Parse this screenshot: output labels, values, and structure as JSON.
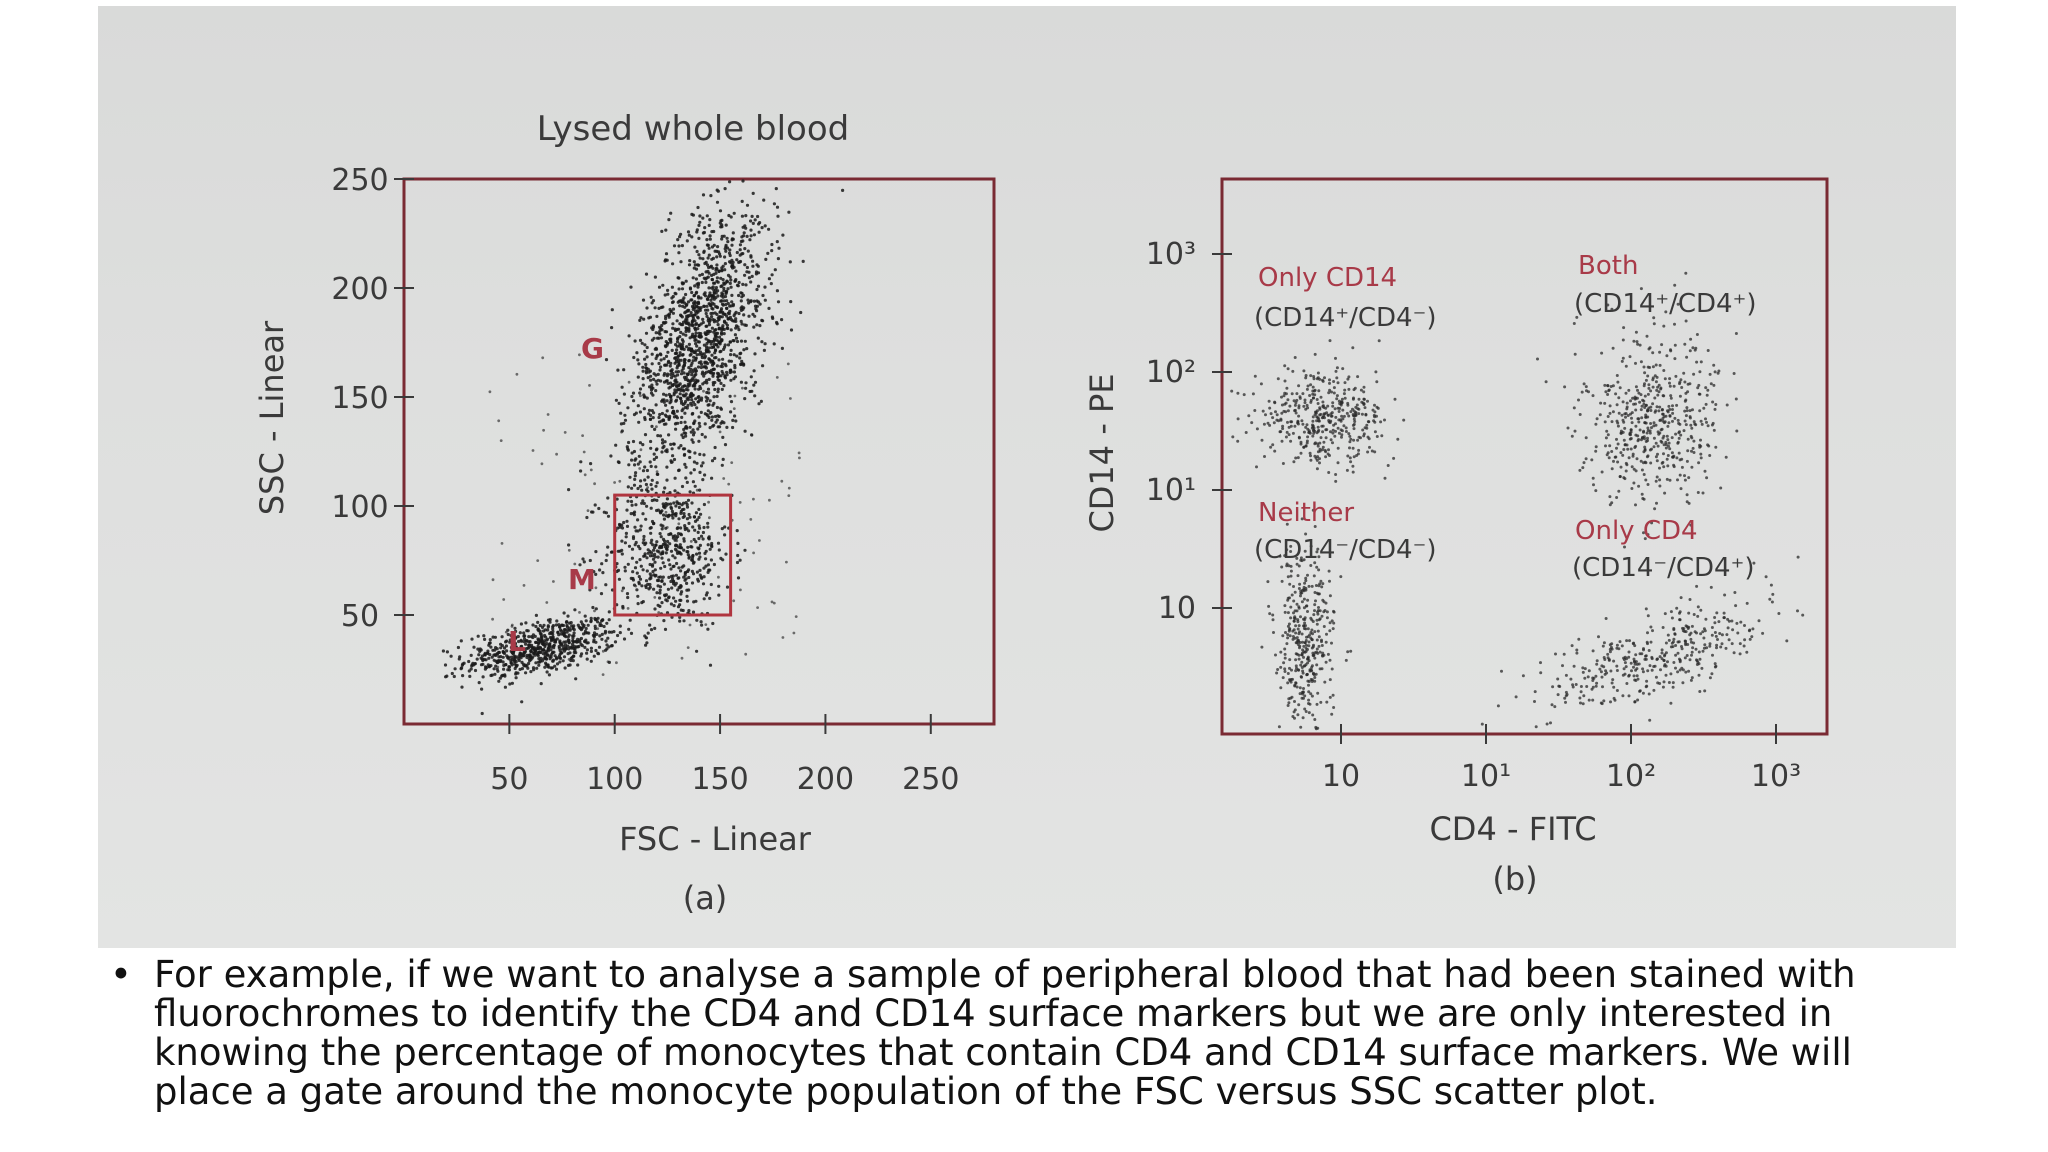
{
  "slide": {
    "caption": "For example, if we want to analyse a sample of peripheral blood that had been stained with fluorochromes to identify the CD4 and CD14 surface markers but we are only interested in knowing the percentage of monocytes that contain CD4 and CD14 surface markers. We will place a gate around the monocyte population of the FSC versus SSC scatter plot.",
    "bullet": "•"
  },
  "colors": {
    "axis": "#7a2a33",
    "dots": "#1a1a1a",
    "label_red": "#a83a48",
    "text": "#3a3a3a"
  },
  "chart_data": [
    {
      "type": "scatter",
      "panel_label": "(a)",
      "title": "Lysed whole blood",
      "xlabel": "FSC - Linear",
      "ylabel": "SSC - Linear",
      "x_ticks": [
        "50",
        "100",
        "150",
        "200",
        "250"
      ],
      "y_ticks": [
        "50",
        "100",
        "150",
        "200",
        "250"
      ],
      "xlim": [
        0,
        280
      ],
      "ylim": [
        0,
        250
      ],
      "gate": {
        "label": "M",
        "x": [
          100,
          155
        ],
        "y": [
          50,
          105
        ]
      },
      "series": [
        {
          "name": "L",
          "center": [
            65,
            35
          ],
          "spread": [
            18,
            6
          ],
          "count": 650
        },
        {
          "name": "M",
          "center": [
            125,
            78
          ],
          "spread": [
            15,
            17
          ],
          "count": 520
        },
        {
          "name": "G",
          "center": [
            140,
            175
          ],
          "spread": [
            14,
            32
          ],
          "count": 1500
        }
      ]
    },
    {
      "type": "scatter",
      "panel_label": "(b)",
      "xlabel": "CD4 - FITC",
      "ylabel": "CD14 - PE",
      "x_ticks": [
        "10",
        "10¹",
        "10²",
        "10³"
      ],
      "y_ticks": [
        "10",
        "10¹",
        "10²",
        "10³"
      ],
      "scale": "log",
      "quadrants": [
        {
          "name": "Only CD14",
          "sub": "(CD14⁺/CD4⁻)"
        },
        {
          "name": "Both",
          "sub": "(CD14⁺/CD4⁺)"
        },
        {
          "name": "Neither",
          "sub": "(CD14⁻/CD4⁻)"
        },
        {
          "name": "Only CD4",
          "sub": "(CD14⁻/CD4⁺)"
        }
      ]
    }
  ]
}
